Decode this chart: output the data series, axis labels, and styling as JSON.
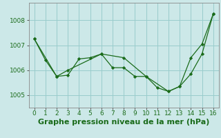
{
  "background_color": "#cce8e8",
  "grid_color": "#99cccc",
  "line_color": "#1a6b1a",
  "x_ticks": [
    0,
    1,
    2,
    3,
    4,
    5,
    6,
    7,
    8,
    9,
    10,
    11,
    12,
    13,
    14,
    15,
    16
  ],
  "ylim": [
    1004.5,
    1008.7
  ],
  "yticks": [
    1005,
    1006,
    1007,
    1008
  ],
  "series1_x": [
    0,
    1,
    2,
    3,
    4,
    5,
    6,
    7,
    8,
    9,
    10,
    11,
    12,
    13,
    14,
    15,
    16
  ],
  "series1_y": [
    1007.25,
    1006.4,
    1005.75,
    1005.8,
    1006.45,
    1006.5,
    1006.65,
    1006.1,
    1006.1,
    1005.75,
    1005.75,
    1005.3,
    1005.15,
    1005.35,
    1005.85,
    1006.65,
    1008.25
  ],
  "series2_x": [
    0,
    2,
    3,
    6,
    8,
    10,
    12,
    13,
    14,
    15,
    16
  ],
  "series2_y": [
    1007.25,
    1005.75,
    1006.0,
    1006.65,
    1006.5,
    1005.75,
    1005.15,
    1005.35,
    1006.5,
    1007.05,
    1008.25
  ],
  "xlabel": "Graphe pression niveau de la mer (hPa)",
  "tick_fontsize": 6.5,
  "xlabel_fontsize": 8
}
